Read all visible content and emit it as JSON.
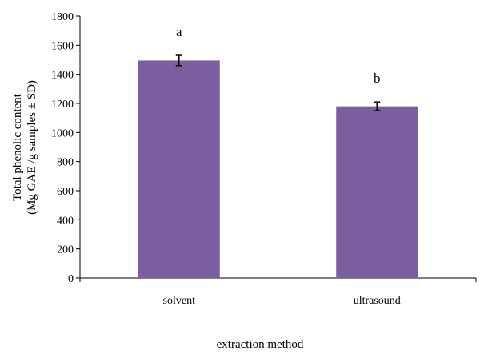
{
  "chart_data": {
    "type": "bar",
    "categories": [
      "solvent",
      "ultrasound"
    ],
    "values": [
      1495,
      1180
    ],
    "errors": [
      35,
      30
    ],
    "annotations": [
      "a",
      "b"
    ],
    "xlabel": "extraction method",
    "ylabel_line1": "Total phenolic content",
    "ylabel_line2": "(Mg GAE /g samples ± SD)",
    "ylim": [
      0,
      1800
    ],
    "yticks": [
      0,
      200,
      400,
      600,
      800,
      1000,
      1200,
      1400,
      1600,
      1800
    ],
    "grid": false,
    "legend": "none",
    "colors": {
      "bar": "#7b5fa0",
      "axis": "#000000"
    }
  }
}
